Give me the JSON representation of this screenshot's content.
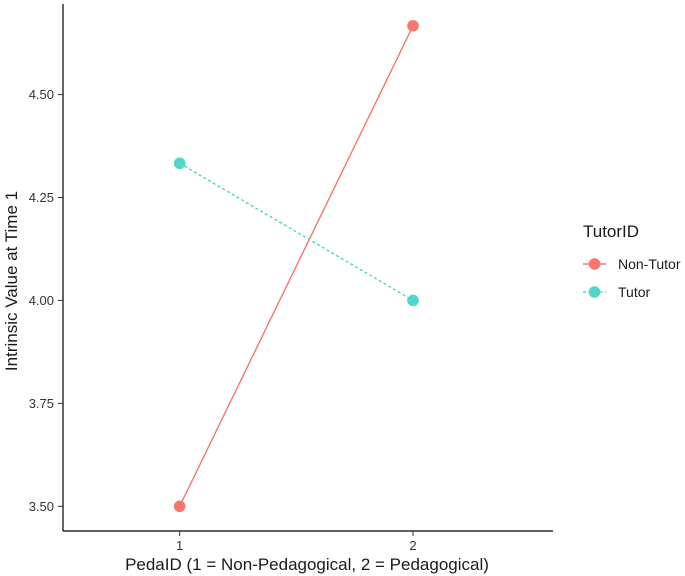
{
  "chart_data": {
    "type": "line",
    "xlabel": "PedaID (1 = Non-Pedagogical, 2 = Pedagogical)",
    "ylabel": "Intrinsic Value at Time 1",
    "x": [
      1,
      2
    ],
    "x_tick_labels": [
      "1",
      "2"
    ],
    "xlim": [
      0.5,
      2.6
    ],
    "y_ticks": [
      3.5,
      3.75,
      4.0,
      4.25,
      4.5
    ],
    "y_tick_labels": [
      "3.50",
      "3.75",
      "4.00",
      "4.25",
      "4.50"
    ],
    "ylim": [
      3.44,
      4.72
    ],
    "grid": false,
    "legend": {
      "title": "TutorID",
      "position": "right"
    },
    "series": [
      {
        "name": "Non-Tutor",
        "values": [
          3.5,
          4.667
        ],
        "color": "#f8766d",
        "line_style": "solid"
      },
      {
        "name": "Tutor",
        "values": [
          4.333,
          4.0
        ],
        "color": "#4fd5c9",
        "line_style": "dashed"
      }
    ]
  }
}
